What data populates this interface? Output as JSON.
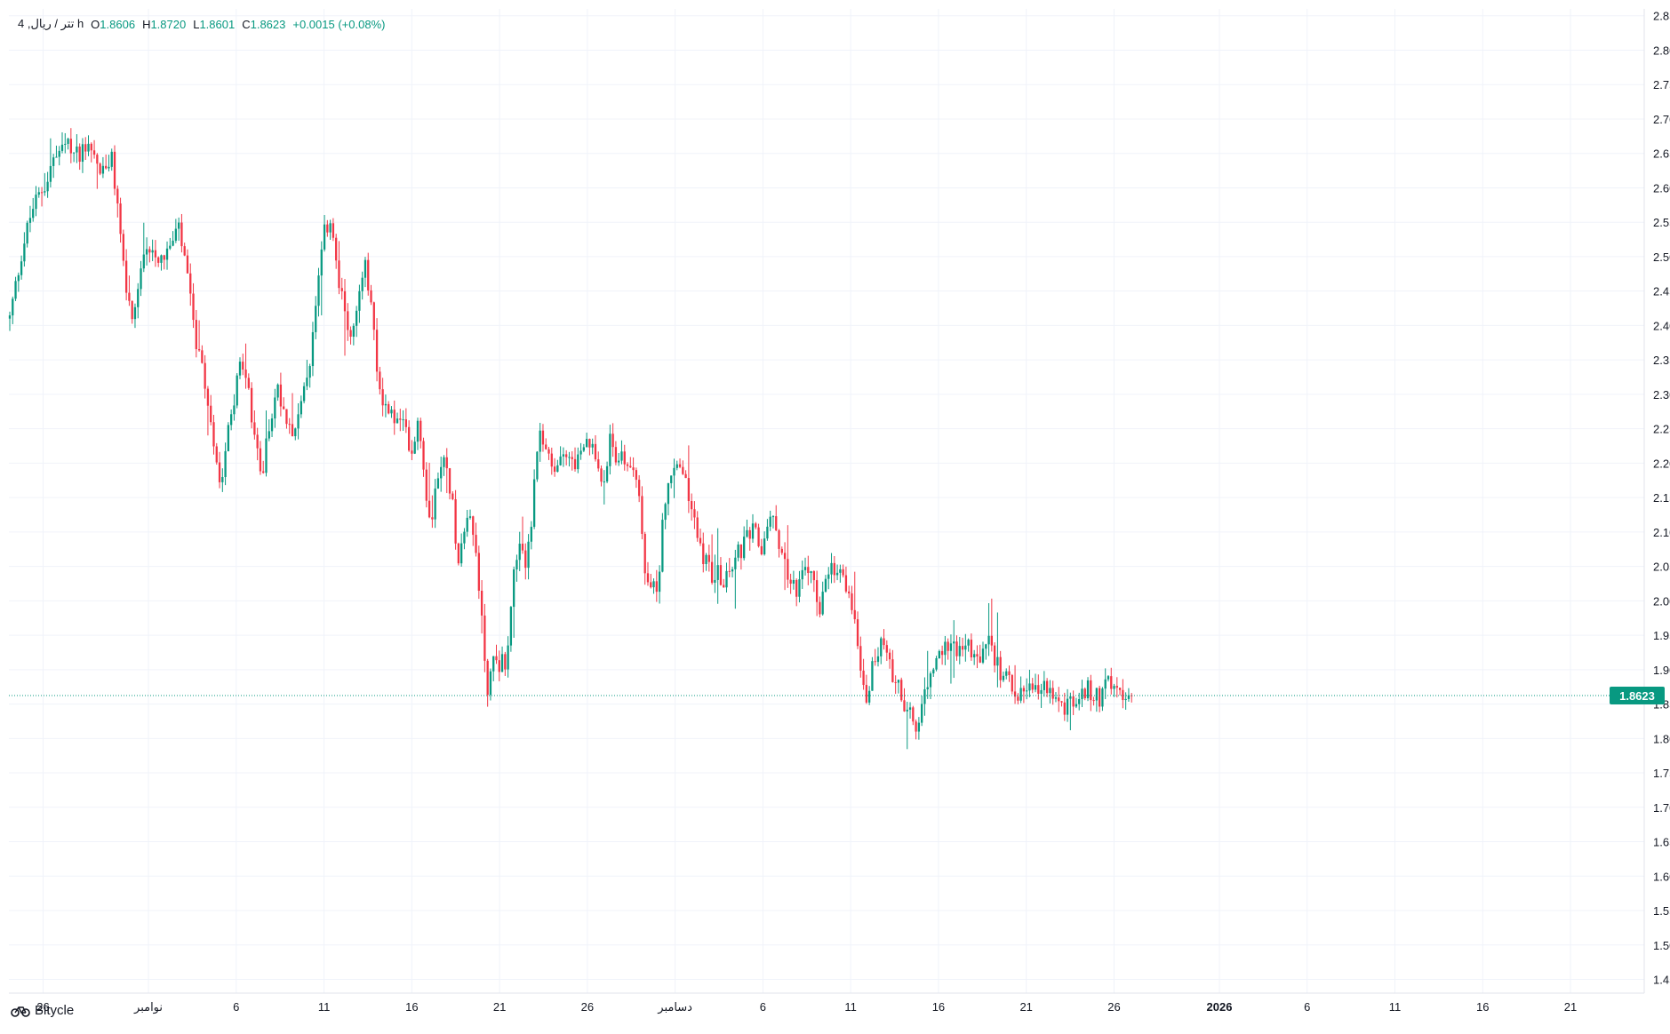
{
  "legend": {
    "symbol": "4 ,تتر / ریال h",
    "open_key": "O",
    "open": "1.8606",
    "high_key": "H",
    "high": "1.8720",
    "low_key": "L",
    "low": "1.8601",
    "close_key": "C",
    "close": "1.8623",
    "change": "+0.0015 (+0.08%)"
  },
  "brand": {
    "name": "Bitycle",
    "icon": "bike-icon"
  },
  "colors": {
    "up": "#089981",
    "down": "#F23645",
    "grid": "#F0F3FA",
    "axis_text": "#131722",
    "price_line": "#089981"
  },
  "chart_data": {
    "type": "candlestick",
    "title": "",
    "xlabel": "",
    "ylabel": "",
    "ylim": [
      1.43,
      2.86
    ],
    "grid": true,
    "last_price": 1.8623,
    "last_price_label": "1.8623",
    "y_ticks": [
      "1.4500",
      "1.5000",
      "1.5500",
      "1.6000",
      "1.6500",
      "1.7000",
      "1.7500",
      "1.8000",
      "1.8500",
      "1.9000",
      "1.9500",
      "2.0000",
      "2.0500",
      "2.1000",
      "2.1500",
      "2.2000",
      "2.2500",
      "2.3000",
      "2.3500",
      "2.4000",
      "2.4500",
      "2.5000",
      "2.5500",
      "2.6000",
      "2.6500",
      "2.7000",
      "2.7500",
      "2.8000",
      "2.8500"
    ],
    "x_ticks": [
      {
        "label": "26",
        "day": 0
      },
      {
        "label": "نوامبر",
        "day": 6
      },
      {
        "label": "6",
        "day": 11
      },
      {
        "label": "11",
        "day": 16
      },
      {
        "label": "16",
        "day": 21
      },
      {
        "label": "21",
        "day": 26
      },
      {
        "label": "26",
        "day": 31
      },
      {
        "label": "دسامبر",
        "day": 36
      },
      {
        "label": "6",
        "day": 41
      },
      {
        "label": "11",
        "day": 46
      },
      {
        "label": "16",
        "day": 51
      },
      {
        "label": "21",
        "day": 56
      },
      {
        "label": "26",
        "day": 61
      },
      {
        "label": "2026",
        "day": 67
      },
      {
        "label": "6",
        "day": 72
      },
      {
        "label": "11",
        "day": 77
      },
      {
        "label": "16",
        "day": 82
      },
      {
        "label": "21",
        "day": 87
      }
    ],
    "x_domain_days": [
      -1.95,
      91.2
    ],
    "candles_per_day": 6,
    "path_anchors": [
      [
        -1.9,
        2.41
      ],
      [
        -1.2,
        2.51
      ],
      [
        -0.6,
        2.57
      ],
      [
        0.0,
        2.6
      ],
      [
        0.6,
        2.64
      ],
      [
        1.3,
        2.66
      ],
      [
        2.0,
        2.65
      ],
      [
        2.6,
        2.67
      ],
      [
        3.3,
        2.62
      ],
      [
        3.9,
        2.64
      ],
      [
        4.3,
        2.56
      ],
      [
        4.7,
        2.46
      ],
      [
        5.1,
        2.39
      ],
      [
        5.6,
        2.48
      ],
      [
        6.1,
        2.52
      ],
      [
        6.6,
        2.5
      ],
      [
        7.2,
        2.51
      ],
      [
        7.7,
        2.54
      ],
      [
        8.1,
        2.49
      ],
      [
        8.5,
        2.41
      ],
      [
        8.9,
        2.35
      ],
      [
        9.3,
        2.3
      ],
      [
        9.7,
        2.24
      ],
      [
        10.1,
        2.17
      ],
      [
        10.5,
        2.25
      ],
      [
        10.9,
        2.3
      ],
      [
        11.3,
        2.35
      ],
      [
        11.7,
        2.3
      ],
      [
        12.1,
        2.22
      ],
      [
        12.5,
        2.19
      ],
      [
        12.9,
        2.26
      ],
      [
        13.4,
        2.31
      ],
      [
        13.8,
        2.27
      ],
      [
        14.3,
        2.25
      ],
      [
        14.8,
        2.29
      ],
      [
        15.2,
        2.35
      ],
      [
        15.6,
        2.44
      ],
      [
        16.0,
        2.53
      ],
      [
        16.4,
        2.56
      ],
      [
        16.8,
        2.46
      ],
      [
        17.2,
        2.42
      ],
      [
        17.6,
        2.38
      ],
      [
        18.0,
        2.44
      ],
      [
        18.3,
        2.49
      ],
      [
        18.7,
        2.43
      ],
      [
        19.0,
        2.33
      ],
      [
        19.4,
        2.29
      ],
      [
        19.8,
        2.27
      ],
      [
        20.2,
        2.26
      ],
      [
        20.6,
        2.25
      ],
      [
        21.0,
        2.22
      ],
      [
        21.4,
        2.27
      ],
      [
        21.8,
        2.16
      ],
      [
        22.1,
        2.12
      ],
      [
        22.5,
        2.19
      ],
      [
        22.9,
        2.2
      ],
      [
        23.3,
        2.15
      ],
      [
        23.6,
        2.05
      ],
      [
        23.9,
        2.11
      ],
      [
        24.3,
        2.13
      ],
      [
        24.7,
        2.06
      ],
      [
        25.0,
        1.97
      ],
      [
        25.3,
        1.87
      ],
      [
        25.7,
        1.92
      ],
      [
        26.0,
        1.91
      ],
      [
        26.4,
        1.91
      ],
      [
        26.7,
        2.02
      ],
      [
        27.1,
        2.07
      ],
      [
        27.5,
        2.06
      ],
      [
        27.8,
        2.11
      ],
      [
        28.2,
        2.23
      ],
      [
        28.5,
        2.24
      ],
      [
        28.8,
        2.2
      ],
      [
        29.2,
        2.18
      ],
      [
        29.6,
        2.23
      ],
      [
        29.9,
        2.21
      ],
      [
        30.3,
        2.2
      ],
      [
        30.7,
        2.21
      ],
      [
        31.1,
        2.23
      ],
      [
        31.5,
        2.2
      ],
      [
        31.9,
        2.18
      ],
      [
        32.3,
        2.23
      ],
      [
        32.7,
        2.21
      ],
      [
        33.1,
        2.2
      ],
      [
        33.5,
        2.2
      ],
      [
        33.9,
        2.17
      ],
      [
        34.2,
        2.05
      ],
      [
        34.6,
        2.01
      ],
      [
        35.0,
        2.02
      ],
      [
        35.4,
        2.15
      ],
      [
        35.8,
        2.18
      ],
      [
        36.2,
        2.2
      ],
      [
        36.6,
        2.17
      ],
      [
        36.9,
        2.14
      ],
      [
        37.3,
        2.09
      ],
      [
        37.7,
        2.06
      ],
      [
        38.1,
        2.04
      ],
      [
        38.5,
        2.04
      ],
      [
        38.9,
        2.03
      ],
      [
        39.3,
        2.06
      ],
      [
        39.7,
        2.07
      ],
      [
        40.1,
        2.09
      ],
      [
        40.5,
        2.1
      ],
      [
        40.9,
        2.07
      ],
      [
        41.3,
        2.12
      ],
      [
        41.7,
        2.11
      ],
      [
        42.1,
        2.07
      ],
      [
        42.5,
        2.03
      ],
      [
        42.9,
        2.02
      ],
      [
        43.2,
        2.03
      ],
      [
        43.6,
        2.05
      ],
      [
        43.9,
        2.02
      ],
      [
        44.2,
        1.99
      ],
      [
        44.5,
        2.01
      ],
      [
        44.8,
        2.04
      ],
      [
        45.2,
        2.04
      ],
      [
        45.6,
        2.03
      ],
      [
        46.0,
        2.0
      ],
      [
        46.3,
        1.97
      ],
      [
        46.6,
        1.9
      ],
      [
        46.9,
        1.86
      ],
      [
        47.3,
        1.91
      ],
      [
        47.7,
        1.94
      ],
      [
        48.1,
        1.91
      ],
      [
        48.5,
        1.89
      ],
      [
        48.8,
        1.88
      ],
      [
        49.1,
        1.84
      ],
      [
        49.4,
        1.83
      ],
      [
        49.7,
        1.81
      ],
      [
        50.0,
        1.84
      ],
      [
        50.3,
        1.87
      ],
      [
        50.7,
        1.9
      ],
      [
        51.1,
        1.92
      ],
      [
        51.5,
        1.94
      ],
      [
        51.9,
        1.93
      ],
      [
        52.3,
        1.94
      ],
      [
        52.7,
        1.93
      ],
      [
        53.1,
        1.91
      ],
      [
        53.5,
        1.92
      ],
      [
        53.9,
        1.94
      ],
      [
        54.3,
        1.91
      ],
      [
        54.7,
        1.89
      ],
      [
        55.1,
        1.88
      ],
      [
        55.5,
        1.87
      ],
      [
        55.9,
        1.86
      ],
      [
        56.3,
        1.87
      ],
      [
        56.7,
        1.86
      ],
      [
        57.1,
        1.88
      ],
      [
        57.5,
        1.86
      ],
      [
        57.9,
        1.84
      ],
      [
        58.3,
        1.85
      ],
      [
        58.7,
        1.85
      ],
      [
        59.1,
        1.86
      ],
      [
        59.5,
        1.87
      ],
      [
        59.9,
        1.86
      ],
      [
        60.3,
        1.86
      ],
      [
        60.6,
        1.91
      ],
      [
        60.9,
        1.88
      ],
      [
        61.2,
        1.86
      ],
      [
        61.6,
        1.85
      ],
      [
        62.0,
        1.86
      ]
    ],
    "candle_count": 386
  }
}
